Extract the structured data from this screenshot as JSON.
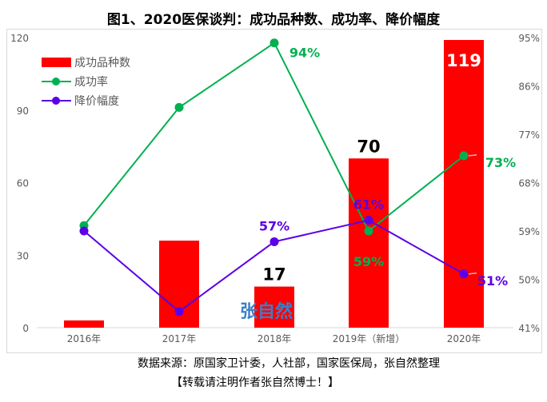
{
  "chart_data": {
    "type": "bar",
    "title": "图1、2020医保谈判：成功品种数、成功率、降价幅度",
    "categories": [
      "2016年",
      "2017年",
      "2018年",
      "2019年（新增）",
      "2020年"
    ],
    "left_axis": {
      "ylim": [
        0,
        120
      ],
      "ticks": [
        "0",
        "30",
        "60",
        "90",
        "120"
      ]
    },
    "right_axis": {
      "ylim": [
        41,
        95
      ],
      "ticks": [
        "41%",
        "50%",
        "59%",
        "68%",
        "77%",
        "86%",
        "95%"
      ]
    },
    "series": [
      {
        "name": "成功品种数",
        "type": "bar",
        "axis": "left",
        "color": "#ff0000",
        "values": [
          3,
          36,
          17,
          70,
          119
        ],
        "labels": [
          "",
          "",
          "17",
          "70",
          "119"
        ]
      },
      {
        "name": "成功率",
        "type": "line",
        "axis": "right",
        "color": "#00b050",
        "values": [
          60,
          82,
          94,
          59,
          73
        ],
        "labels": [
          "",
          "",
          "94%",
          "59%",
          "73%"
        ]
      },
      {
        "name": "降价幅度",
        "type": "line",
        "axis": "right",
        "color": "#5b00e6",
        "values": [
          59,
          44,
          57,
          61,
          51
        ],
        "labels": [
          "",
          "",
          "57%",
          "61%",
          "51%"
        ]
      }
    ],
    "legend": "top-left"
  },
  "source": "数据来源：原国家卫计委，人社部，国家医保局，张自然整理",
  "note": "【转载请注明作者张自然博士！】",
  "watermark": "张自然"
}
